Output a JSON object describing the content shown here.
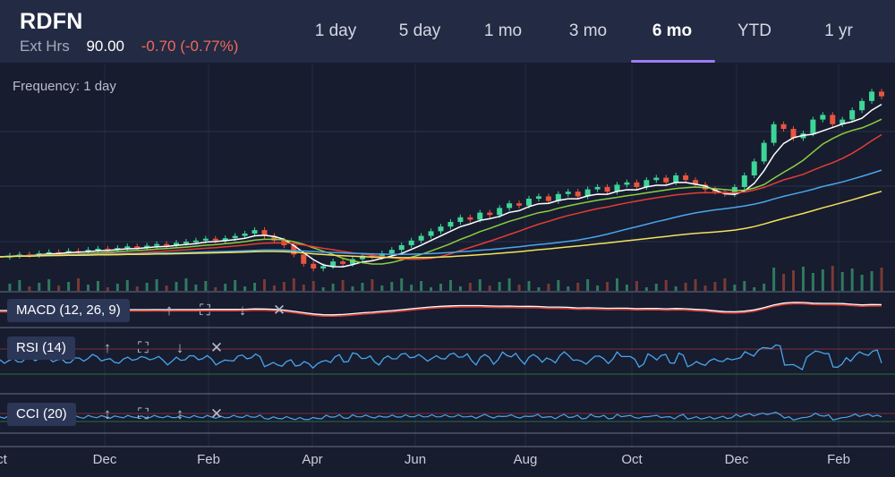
{
  "header": {
    "ticker": "RDFN",
    "ext_label": "Ext Hrs",
    "price": "90.00",
    "change": "-0.70 (-0.77%)"
  },
  "tabs": [
    {
      "label": "1 day"
    },
    {
      "label": "5 day"
    },
    {
      "label": "1 mo"
    },
    {
      "label": "3 mo"
    },
    {
      "label": "6 mo",
      "active": true
    },
    {
      "label": "YTD"
    },
    {
      "label": "1 yr"
    }
  ],
  "frequency_label": "Frequency: 1 day",
  "indicators": {
    "macd": {
      "label": "MACD (12, 26, 9)"
    },
    "rsi": {
      "label": "RSI (14)"
    },
    "cci": {
      "label": "CCI (20)"
    }
  },
  "controls": {
    "up": "up-arrow-icon",
    "expand": "expand-icon",
    "down": "down-arrow-icon",
    "close": "close-icon"
  },
  "colors": {
    "header_bg": "#232a43",
    "bg": "#171c2f",
    "up_candle": "#3ed598",
    "down_candle": "#e8553f",
    "ma_white": "#ffffff",
    "ma_green": "#8ccf3f",
    "ma_red": "#e53d32",
    "ma_blue": "#4aa6ea",
    "ma_yellow": "#f2e35a",
    "rsi_line": "#4aa6ea",
    "accent": "#9b7df5",
    "negative": "#ef6a5b"
  },
  "chart_data": {
    "type": "line",
    "x_tick_labels": [
      "ct",
      "Dec",
      "Feb",
      "Apr",
      "Jun",
      "Aug",
      "Oct",
      "Dec",
      "Feb"
    ],
    "price_series": [
      15,
      15.5,
      16,
      15.8,
      16.5,
      17,
      16.8,
      17.5,
      17.2,
      18,
      18.5,
      18.2,
      18.8,
      19.5,
      19,
      19.8,
      20.5,
      20,
      21,
      21.5,
      22,
      22.8,
      22,
      23,
      24,
      25,
      26.5,
      24,
      22,
      20,
      16,
      12,
      10,
      11,
      13,
      12,
      14,
      15.5,
      15,
      16.5,
      18,
      20,
      22,
      24,
      26,
      28,
      30,
      32,
      31,
      34,
      33,
      36,
      38,
      37,
      40,
      41,
      39,
      42,
      43,
      41,
      44,
      45,
      43,
      46,
      47,
      45,
      48,
      49,
      47,
      50,
      48,
      46,
      44,
      43,
      42,
      45,
      50,
      56,
      64,
      72,
      70,
      66,
      68,
      74,
      76,
      72,
      74,
      78,
      82,
      86,
      84
    ],
    "series": [
      {
        "name": "MA white"
      },
      {
        "name": "MA green"
      },
      {
        "name": "MA red"
      },
      {
        "name": "MA blue"
      },
      {
        "name": "MA yellow"
      }
    ]
  },
  "x_axis": [
    "ct",
    "Dec",
    "Feb",
    "Apr",
    "Jun",
    "Aug",
    "Oct",
    "Dec",
    "Feb"
  ]
}
